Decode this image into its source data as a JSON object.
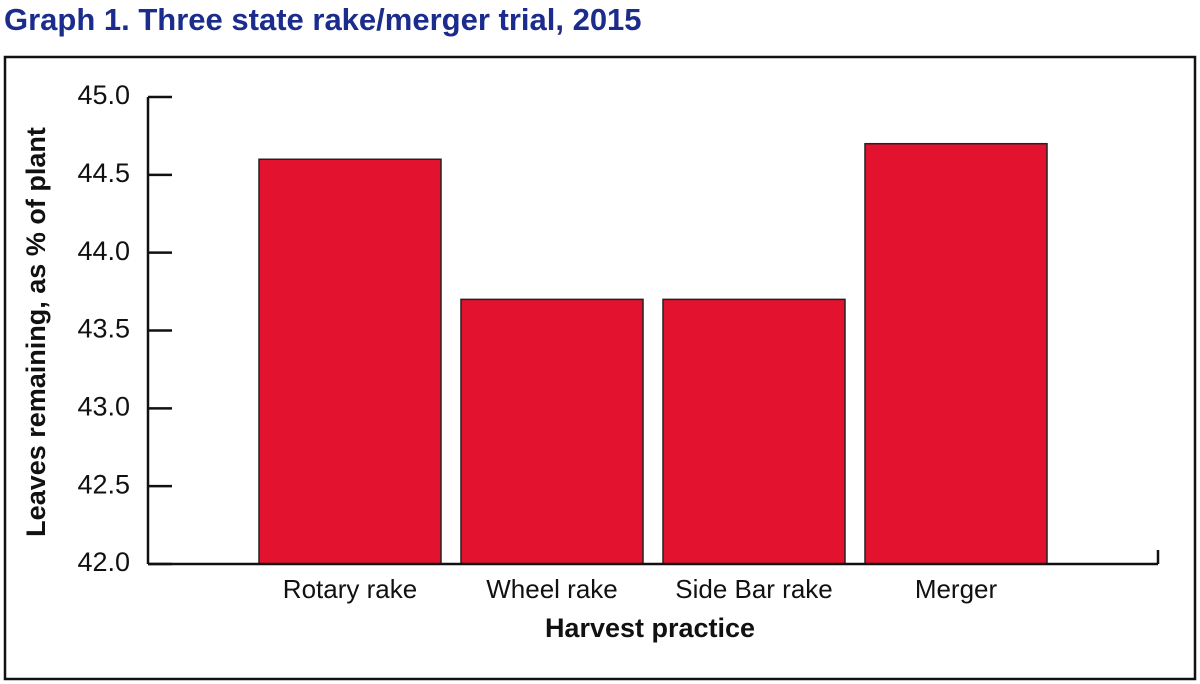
{
  "chart_data": {
    "type": "bar",
    "title": "Graph 1. Three state rake/merger trial, 2015",
    "x_label": "Harvest practice",
    "y_label": "Leaves remaining, as % of plant",
    "categories": [
      "Rotary rake",
      "Wheel rake",
      "Side Bar rake",
      "Merger"
    ],
    "values": [
      44.6,
      43.7,
      43.7,
      44.7
    ],
    "color": "#e3122f",
    "ylim": [
      42,
      45
    ],
    "yticks": [
      {
        "value": 42,
        "label": "42.0"
      },
      {
        "value": 42.5,
        "label": "42.5"
      },
      {
        "value": 43,
        "label": "43.0"
      },
      {
        "value": 43.5,
        "label": "43.5"
      },
      {
        "value": 44,
        "label": "44.0"
      },
      {
        "value": 44.5,
        "label": "44.5"
      },
      {
        "value": 45,
        "label": "45.0"
      }
    ],
    "grid": false
  }
}
